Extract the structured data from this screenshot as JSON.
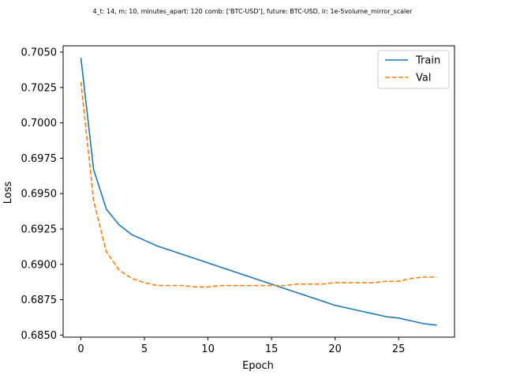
{
  "chart_data": {
    "type": "line",
    "title": "4_t: 14, m: 10, minutes_apart: 120 comb: ['BTC-USD'], future: BTC-USD, lr: 1e-5volume_mirror_scaler",
    "xlabel": "Epoch",
    "ylabel": "Loss",
    "xlim": [
      -1.4,
      29.4
    ],
    "ylim": [
      0.68485,
      0.70545
    ],
    "xticks": [
      0,
      5,
      10,
      15,
      20,
      25
    ],
    "yticks": [
      0.685,
      0.6875,
      0.69,
      0.6925,
      0.695,
      0.6975,
      0.7,
      0.7025,
      0.705
    ],
    "ytick_labels": [
      "0.6850",
      "0.6875",
      "0.6900",
      "0.6925",
      "0.6950",
      "0.6975",
      "0.7000",
      "0.7025",
      "0.7050"
    ],
    "xtick_labels": [
      "0",
      "5",
      "10",
      "15",
      "20",
      "25"
    ],
    "legend_position": "top-right",
    "grid": false,
    "x": [
      0,
      1,
      2,
      3,
      4,
      5,
      6,
      7,
      8,
      9,
      10,
      11,
      12,
      13,
      14,
      15,
      16,
      17,
      18,
      19,
      20,
      21,
      22,
      23,
      24,
      25,
      26,
      27,
      28
    ],
    "series": [
      {
        "name": "Train",
        "color": "#1f77b4",
        "dash": "solid",
        "values": [
          0.7046,
          0.6967,
          0.6939,
          0.6928,
          0.6921,
          0.6917,
          0.6913,
          0.691,
          0.6907,
          0.6904,
          0.6901,
          0.6898,
          0.6895,
          0.6892,
          0.6889,
          0.6886,
          0.6883,
          0.688,
          0.6877,
          0.6874,
          0.6871,
          0.6869,
          0.6867,
          0.6865,
          0.6863,
          0.6862,
          0.686,
          0.6858,
          0.6857
        ]
      },
      {
        "name": "Val",
        "color": "#ff7f0e",
        "dash": "dashed",
        "values": [
          0.7029,
          0.6945,
          0.6909,
          0.6896,
          0.689,
          0.6887,
          0.6885,
          0.6885,
          0.6885,
          0.6884,
          0.6884,
          0.6885,
          0.6885,
          0.6885,
          0.6885,
          0.6885,
          0.6885,
          0.6886,
          0.6886,
          0.6886,
          0.6887,
          0.6887,
          0.6887,
          0.6887,
          0.6888,
          0.6888,
          0.689,
          0.6891,
          0.6891
        ]
      }
    ]
  }
}
